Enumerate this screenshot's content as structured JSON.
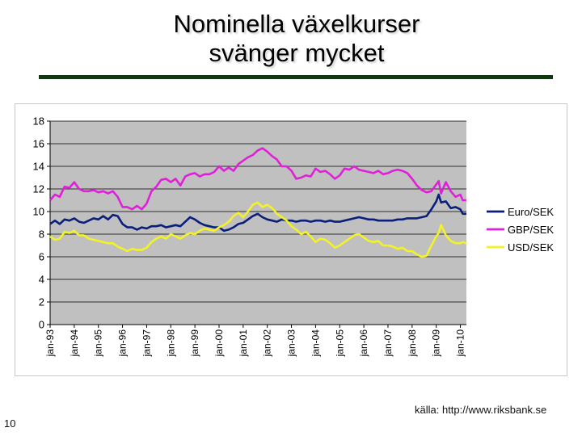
{
  "slide": {
    "title_line1": "Nominella växelkurser",
    "title_line2": "svänger mycket",
    "source": "källa: http://www.riksbank.se",
    "page_number": "10",
    "rule_color": "#0a3b0a"
  },
  "chart_data": {
    "type": "line",
    "title": "",
    "xlabel": "",
    "ylabel": "",
    "ylim": [
      0,
      18
    ],
    "yticks": [
      0,
      2,
      4,
      6,
      8,
      10,
      12,
      14,
      16,
      18
    ],
    "xlim": [
      1993.0,
      2010.25
    ],
    "xticks": [
      "jan-93",
      "jan-94",
      "jan-95",
      "jan-96",
      "jan-97",
      "jan-98",
      "jan-99",
      "jan-00",
      "jan-01",
      "jan-02",
      "jan-03",
      "jan-04",
      "jan-05",
      "jan-06",
      "jan-07",
      "jan-08",
      "jan-09",
      "jan-10"
    ],
    "grid": true,
    "plot_background": "#c0c0c0",
    "legend_position": "right",
    "series": [
      {
        "name": "Euro/SEK",
        "color": "#0a1f7a",
        "points": [
          [
            1993.0,
            8.9
          ],
          [
            1993.2,
            9.2
          ],
          [
            1993.4,
            8.9
          ],
          [
            1993.6,
            9.3
          ],
          [
            1993.8,
            9.2
          ],
          [
            1994.0,
            9.4
          ],
          [
            1994.2,
            9.1
          ],
          [
            1994.4,
            9.0
          ],
          [
            1994.6,
            9.2
          ],
          [
            1994.8,
            9.4
          ],
          [
            1995.0,
            9.3
          ],
          [
            1995.2,
            9.6
          ],
          [
            1995.4,
            9.3
          ],
          [
            1995.6,
            9.7
          ],
          [
            1995.8,
            9.6
          ],
          [
            1996.0,
            8.9
          ],
          [
            1996.2,
            8.6
          ],
          [
            1996.4,
            8.6
          ],
          [
            1996.6,
            8.4
          ],
          [
            1996.8,
            8.6
          ],
          [
            1997.0,
            8.5
          ],
          [
            1997.2,
            8.7
          ],
          [
            1997.4,
            8.7
          ],
          [
            1997.6,
            8.8
          ],
          [
            1997.8,
            8.6
          ],
          [
            1998.0,
            8.7
          ],
          [
            1998.2,
            8.8
          ],
          [
            1998.4,
            8.7
          ],
          [
            1998.6,
            9.1
          ],
          [
            1998.8,
            9.5
          ],
          [
            1999.0,
            9.3
          ],
          [
            1999.2,
            9.0
          ],
          [
            1999.4,
            8.8
          ],
          [
            1999.6,
            8.7
          ],
          [
            1999.8,
            8.6
          ],
          [
            2000.0,
            8.6
          ],
          [
            2000.2,
            8.3
          ],
          [
            2000.4,
            8.4
          ],
          [
            2000.6,
            8.6
          ],
          [
            2000.8,
            8.9
          ],
          [
            2001.0,
            9.0
          ],
          [
            2001.2,
            9.3
          ],
          [
            2001.4,
            9.6
          ],
          [
            2001.6,
            9.8
          ],
          [
            2001.8,
            9.5
          ],
          [
            2002.0,
            9.3
          ],
          [
            2002.2,
            9.2
          ],
          [
            2002.4,
            9.1
          ],
          [
            2002.6,
            9.3
          ],
          [
            2002.8,
            9.2
          ],
          [
            2003.0,
            9.2
          ],
          [
            2003.2,
            9.1
          ],
          [
            2003.4,
            9.2
          ],
          [
            2003.6,
            9.2
          ],
          [
            2003.8,
            9.1
          ],
          [
            2004.0,
            9.2
          ],
          [
            2004.2,
            9.2
          ],
          [
            2004.4,
            9.1
          ],
          [
            2004.6,
            9.2
          ],
          [
            2004.8,
            9.1
          ],
          [
            2005.0,
            9.1
          ],
          [
            2005.2,
            9.2
          ],
          [
            2005.4,
            9.3
          ],
          [
            2005.6,
            9.4
          ],
          [
            2005.8,
            9.5
          ],
          [
            2006.0,
            9.4
          ],
          [
            2006.2,
            9.3
          ],
          [
            2006.4,
            9.3
          ],
          [
            2006.6,
            9.2
          ],
          [
            2006.8,
            9.2
          ],
          [
            2007.0,
            9.2
          ],
          [
            2007.2,
            9.2
          ],
          [
            2007.4,
            9.3
          ],
          [
            2007.6,
            9.3
          ],
          [
            2007.8,
            9.4
          ],
          [
            2008.0,
            9.4
          ],
          [
            2008.2,
            9.4
          ],
          [
            2008.4,
            9.5
          ],
          [
            2008.6,
            9.6
          ],
          [
            2008.8,
            10.2
          ],
          [
            2009.0,
            10.9
          ],
          [
            2009.1,
            11.5
          ],
          [
            2009.2,
            10.8
          ],
          [
            2009.4,
            10.9
          ],
          [
            2009.6,
            10.3
          ],
          [
            2009.8,
            10.4
          ],
          [
            2010.0,
            10.2
          ],
          [
            2010.1,
            9.8
          ],
          [
            2010.25,
            9.8
          ]
        ]
      },
      {
        "name": "GBP/SEK",
        "color": "#e020d8",
        "points": [
          [
            1993.0,
            11.0
          ],
          [
            1993.2,
            11.5
          ],
          [
            1993.4,
            11.3
          ],
          [
            1993.6,
            12.2
          ],
          [
            1993.8,
            12.1
          ],
          [
            1994.0,
            12.6
          ],
          [
            1994.2,
            12.0
          ],
          [
            1994.4,
            11.8
          ],
          [
            1994.6,
            11.8
          ],
          [
            1994.8,
            11.9
          ],
          [
            1995.0,
            11.7
          ],
          [
            1995.2,
            11.8
          ],
          [
            1995.4,
            11.6
          ],
          [
            1995.6,
            11.8
          ],
          [
            1995.8,
            11.3
          ],
          [
            1996.0,
            10.4
          ],
          [
            1996.2,
            10.4
          ],
          [
            1996.4,
            10.2
          ],
          [
            1996.6,
            10.5
          ],
          [
            1996.8,
            10.2
          ],
          [
            1997.0,
            10.7
          ],
          [
            1997.2,
            11.8
          ],
          [
            1997.4,
            12.2
          ],
          [
            1997.6,
            12.8
          ],
          [
            1997.8,
            12.9
          ],
          [
            1998.0,
            12.6
          ],
          [
            1998.2,
            12.9
          ],
          [
            1998.4,
            12.3
          ],
          [
            1998.6,
            13.1
          ],
          [
            1998.8,
            13.3
          ],
          [
            1999.0,
            13.4
          ],
          [
            1999.2,
            13.1
          ],
          [
            1999.4,
            13.3
          ],
          [
            1999.6,
            13.3
          ],
          [
            1999.8,
            13.5
          ],
          [
            2000.0,
            14.0
          ],
          [
            2000.2,
            13.6
          ],
          [
            2000.4,
            13.9
          ],
          [
            2000.6,
            13.6
          ],
          [
            2000.8,
            14.2
          ],
          [
            2001.0,
            14.5
          ],
          [
            2001.2,
            14.8
          ],
          [
            2001.4,
            15.0
          ],
          [
            2001.6,
            15.4
          ],
          [
            2001.8,
            15.6
          ],
          [
            2002.0,
            15.3
          ],
          [
            2002.2,
            14.9
          ],
          [
            2002.4,
            14.6
          ],
          [
            2002.6,
            14.0
          ],
          [
            2002.8,
            14.0
          ],
          [
            2003.0,
            13.6
          ],
          [
            2003.2,
            12.9
          ],
          [
            2003.4,
            13.0
          ],
          [
            2003.6,
            13.2
          ],
          [
            2003.8,
            13.1
          ],
          [
            2004.0,
            13.8
          ],
          [
            2004.2,
            13.5
          ],
          [
            2004.4,
            13.6
          ],
          [
            2004.6,
            13.3
          ],
          [
            2004.8,
            12.9
          ],
          [
            2005.0,
            13.2
          ],
          [
            2005.2,
            13.8
          ],
          [
            2005.4,
            13.7
          ],
          [
            2005.6,
            14.0
          ],
          [
            2005.8,
            13.7
          ],
          [
            2006.0,
            13.6
          ],
          [
            2006.2,
            13.5
          ],
          [
            2006.4,
            13.4
          ],
          [
            2006.6,
            13.6
          ],
          [
            2006.8,
            13.3
          ],
          [
            2007.0,
            13.4
          ],
          [
            2007.2,
            13.6
          ],
          [
            2007.4,
            13.7
          ],
          [
            2007.6,
            13.6
          ],
          [
            2007.8,
            13.4
          ],
          [
            2008.0,
            12.9
          ],
          [
            2008.2,
            12.3
          ],
          [
            2008.4,
            11.9
          ],
          [
            2008.6,
            11.7
          ],
          [
            2008.8,
            11.8
          ],
          [
            2009.0,
            12.4
          ],
          [
            2009.1,
            12.7
          ],
          [
            2009.2,
            11.6
          ],
          [
            2009.4,
            12.6
          ],
          [
            2009.6,
            11.8
          ],
          [
            2009.8,
            11.3
          ],
          [
            2010.0,
            11.5
          ],
          [
            2010.1,
            11.0
          ],
          [
            2010.25,
            11.0
          ]
        ]
      },
      {
        "name": "USD/SEK",
        "color": "#f2f227",
        "points": [
          [
            1993.0,
            7.8
          ],
          [
            1993.2,
            7.5
          ],
          [
            1993.4,
            7.6
          ],
          [
            1993.6,
            8.2
          ],
          [
            1993.8,
            8.1
          ],
          [
            1994.0,
            8.3
          ],
          [
            1994.2,
            7.9
          ],
          [
            1994.4,
            7.9
          ],
          [
            1994.6,
            7.6
          ],
          [
            1994.8,
            7.5
          ],
          [
            1995.0,
            7.4
          ],
          [
            1995.2,
            7.3
          ],
          [
            1995.4,
            7.2
          ],
          [
            1995.6,
            7.2
          ],
          [
            1995.8,
            6.9
          ],
          [
            1996.0,
            6.7
          ],
          [
            1996.2,
            6.5
          ],
          [
            1996.4,
            6.7
          ],
          [
            1996.6,
            6.6
          ],
          [
            1996.8,
            6.6
          ],
          [
            1997.0,
            6.8
          ],
          [
            1997.2,
            7.3
          ],
          [
            1997.4,
            7.6
          ],
          [
            1997.6,
            7.8
          ],
          [
            1997.8,
            7.6
          ],
          [
            1998.0,
            8.0
          ],
          [
            1998.2,
            7.8
          ],
          [
            1998.4,
            7.6
          ],
          [
            1998.6,
            7.9
          ],
          [
            1998.8,
            8.1
          ],
          [
            1999.0,
            8.0
          ],
          [
            1999.2,
            8.3
          ],
          [
            1999.4,
            8.5
          ],
          [
            1999.6,
            8.4
          ],
          [
            1999.8,
            8.3
          ],
          [
            2000.0,
            8.6
          ],
          [
            2000.2,
            8.8
          ],
          [
            2000.4,
            9.1
          ],
          [
            2000.6,
            9.6
          ],
          [
            2000.8,
            9.9
          ],
          [
            2001.0,
            9.5
          ],
          [
            2001.2,
            10.0
          ],
          [
            2001.4,
            10.6
          ],
          [
            2001.6,
            10.8
          ],
          [
            2001.8,
            10.4
          ],
          [
            2002.0,
            10.6
          ],
          [
            2002.2,
            10.3
          ],
          [
            2002.4,
            9.8
          ],
          [
            2002.6,
            9.5
          ],
          [
            2002.8,
            9.2
          ],
          [
            2003.0,
            8.7
          ],
          [
            2003.2,
            8.4
          ],
          [
            2003.4,
            8.0
          ],
          [
            2003.6,
            8.2
          ],
          [
            2003.8,
            7.8
          ],
          [
            2004.0,
            7.3
          ],
          [
            2004.2,
            7.6
          ],
          [
            2004.4,
            7.5
          ],
          [
            2004.6,
            7.2
          ],
          [
            2004.8,
            6.8
          ],
          [
            2005.0,
            7.0
          ],
          [
            2005.2,
            7.3
          ],
          [
            2005.4,
            7.6
          ],
          [
            2005.6,
            7.9
          ],
          [
            2005.8,
            8.0
          ],
          [
            2006.0,
            7.7
          ],
          [
            2006.2,
            7.4
          ],
          [
            2006.4,
            7.3
          ],
          [
            2006.6,
            7.4
          ],
          [
            2006.8,
            7.0
          ],
          [
            2007.0,
            7.0
          ],
          [
            2007.2,
            6.9
          ],
          [
            2007.4,
            6.7
          ],
          [
            2007.6,
            6.8
          ],
          [
            2007.8,
            6.5
          ],
          [
            2008.0,
            6.5
          ],
          [
            2008.2,
            6.2
          ],
          [
            2008.4,
            6.0
          ],
          [
            2008.6,
            6.1
          ],
          [
            2008.8,
            7.0
          ],
          [
            2009.0,
            7.8
          ],
          [
            2009.1,
            8.1
          ],
          [
            2009.2,
            8.8
          ],
          [
            2009.4,
            7.9
          ],
          [
            2009.6,
            7.4
          ],
          [
            2009.8,
            7.2
          ],
          [
            2010.0,
            7.2
          ],
          [
            2010.1,
            7.3
          ],
          [
            2010.25,
            7.2
          ]
        ]
      }
    ]
  }
}
